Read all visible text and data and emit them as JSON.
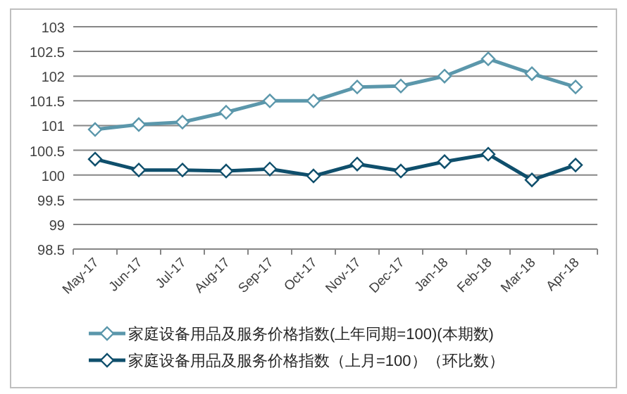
{
  "chart_data": {
    "type": "line",
    "categories": [
      "May-17",
      "Jun-17",
      "Jul-17",
      "Aug-17",
      "Sep-17",
      "Oct-17",
      "Nov-17",
      "Dec-17",
      "Jan-18",
      "Feb-18",
      "Mar-18",
      "Apr-18"
    ],
    "series": [
      {
        "name": "家庭设备用品及服务价格指数(上年同期=100)(本期数)",
        "color": "#5b97ab",
        "values": [
          100.92,
          101.02,
          101.07,
          101.27,
          101.5,
          101.5,
          101.78,
          101.8,
          102.0,
          102.35,
          102.05,
          101.78
        ]
      },
      {
        "name": "家庭设备用品及服务价格指数（上月=100）（环比数）",
        "color": "#0f4f6c",
        "values": [
          100.32,
          100.1,
          100.1,
          100.08,
          100.12,
          99.98,
          100.22,
          100.08,
          100.27,
          100.42,
          99.9,
          100.2
        ]
      }
    ],
    "ylim": [
      98.5,
      103
    ],
    "yticks": [
      98.5,
      99,
      99.5,
      100,
      100.5,
      101,
      101.5,
      102,
      102.5,
      103
    ],
    "grid": "y",
    "legend": "bottom",
    "marker": "diamond",
    "line_style": "solid"
  }
}
